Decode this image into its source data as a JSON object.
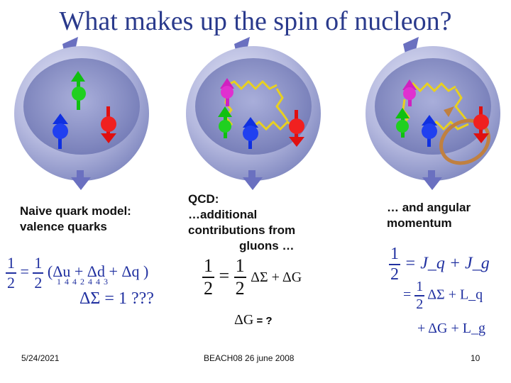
{
  "title": "What makes up the spin of nucleon?",
  "panels": [
    {
      "caption_lines": [
        "Naive quark model:",
        "valence quarks"
      ],
      "eq_line1_prefix": "= ",
      "eq_line1_body": "(Δu + Δd + Δq )",
      "eq_line1_subs": "1 4 4 2 4 4 3",
      "eq_line2": "ΔΣ = 1 ???"
    },
    {
      "caption_lines": [
        "QCD:",
        "…additional",
        "contributions from",
        "gluons …"
      ],
      "eq_middle": " = ",
      "eq_tail": "ΔΣ + ΔG",
      "eq_extra": "ΔG",
      "eq_extra_tail": " = ?"
    },
    {
      "caption_lines": [
        "… and angular",
        "momentum"
      ],
      "eq_row1": " = J_q + J_g",
      "eq_row2_prefix": "= ",
      "eq_row2_tail": "ΔΣ + L_q",
      "eq_row3": "+ ΔG + L_g"
    }
  ],
  "fractions": {
    "one": "1",
    "two": "2"
  },
  "footer": {
    "date": "5/24/2021",
    "venue": "BEACH08 26 june 2008",
    "page": "10"
  },
  "colors": {
    "title": "#2a3a8c",
    "sphere": "#b8bce0",
    "red_quark": "#e01010",
    "green_quark": "#10c010",
    "blue_quark": "#1030e0",
    "magenta_quark": "#d020c0",
    "gluon": "#e8d020",
    "orbit": "#c08040"
  }
}
